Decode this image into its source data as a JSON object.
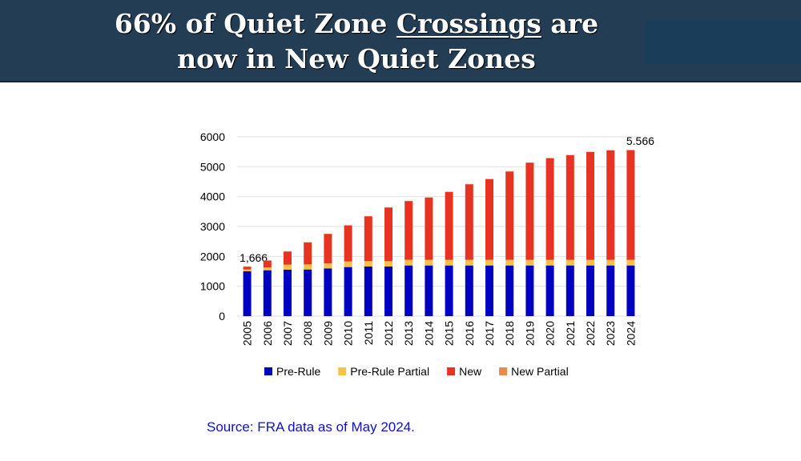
{
  "header": {
    "title_part1": "66% of Quiet Zone ",
    "title_underlined": "Crossings",
    "title_part2": " are",
    "title_line2": "now in New Quiet Zones"
  },
  "chart_data": {
    "type": "bar",
    "stacked": true,
    "categories": [
      "2005",
      "2006",
      "2007",
      "2008",
      "2009",
      "2010",
      "2011",
      "2012",
      "2013",
      "2014",
      "2015",
      "2016",
      "2017",
      "2018",
      "2019",
      "2020",
      "2021",
      "2022",
      "2023",
      "2024"
    ],
    "series": [
      {
        "name": "Pre-Rule",
        "color": "#0000c0",
        "values": [
          1500,
          1536,
          1554,
          1562,
          1598,
          1643,
          1660,
          1660,
          1696,
          1696,
          1696,
          1696,
          1696,
          1696,
          1696,
          1696,
          1696,
          1696,
          1696,
          1696
        ]
      },
      {
        "name": "Pre-Rule Partial",
        "color": "#f5c242",
        "values": [
          62,
          89,
          169,
          170,
          170,
          187,
          179,
          179,
          188,
          188,
          188,
          188,
          188,
          188,
          188,
          188,
          188,
          188,
          188,
          188
        ]
      },
      {
        "name": "New",
        "color": "#e83323",
        "values": [
          90,
          232,
          437,
          732,
          982,
          1206,
          1500,
          1795,
          1964,
          2080,
          2268,
          2527,
          2696,
          2955,
          3250,
          3402,
          3500,
          3607,
          3661,
          3668
        ]
      },
      {
        "name": "New Partial",
        "color": "#e98a4a",
        "values": [
          14,
          13,
          10,
          11,
          10,
          9,
          11,
          11,
          12,
          11,
          13,
          14,
          15,
          11,
          11,
          9,
          11,
          9,
          10,
          14
        ]
      }
    ],
    "ylim": [
      0,
      6000
    ],
    "yticks": [
      0,
      1000,
      2000,
      3000,
      4000,
      5000,
      6000
    ],
    "grid": true,
    "legend": "bottom",
    "annotations": [
      {
        "category": "2005",
        "text": "1,666"
      },
      {
        "category": "2024",
        "text": "5.566"
      }
    ]
  },
  "source": "Source:  FRA data as of May 2024."
}
